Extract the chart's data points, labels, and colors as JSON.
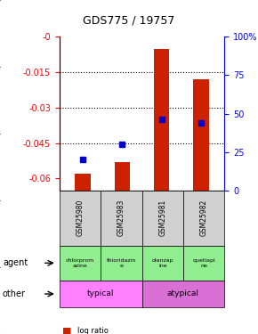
{
  "title": "GDS775 / 19757",
  "samples": [
    "GSM25980",
    "GSM25983",
    "GSM25981",
    "GSM25982"
  ],
  "log_ratios": [
    -0.058,
    -0.053,
    -0.005,
    -0.018
  ],
  "percentile_ranks": [
    20,
    30,
    46,
    44
  ],
  "agents": [
    "chlorprom\nazine",
    "thioridazin\ne",
    "olanzap\nine",
    "quetiapi\nne"
  ],
  "other_groups": [
    [
      "typical",
      2
    ],
    [
      "atypical",
      2
    ]
  ],
  "other_colors": [
    "#FF80FF",
    "#DA70D6"
  ],
  "bar_color": "#CC2200",
  "dot_color": "#0000CC",
  "ylim_left": [
    -0.065,
    0.0
  ],
  "ylim_right": [
    0,
    100
  ],
  "yticks_left": [
    0.0,
    -0.015,
    -0.03,
    -0.045,
    -0.06
  ],
  "ytick_labels_left": [
    "-0",
    "-0.015",
    "-0.03",
    "-0.045",
    "-0.06"
  ],
  "yticks_right": [
    0,
    25,
    50,
    75,
    100
  ],
  "ytick_labels_right": [
    "0",
    "25",
    "50",
    "75",
    "100%"
  ],
  "background_color": "#ffffff"
}
